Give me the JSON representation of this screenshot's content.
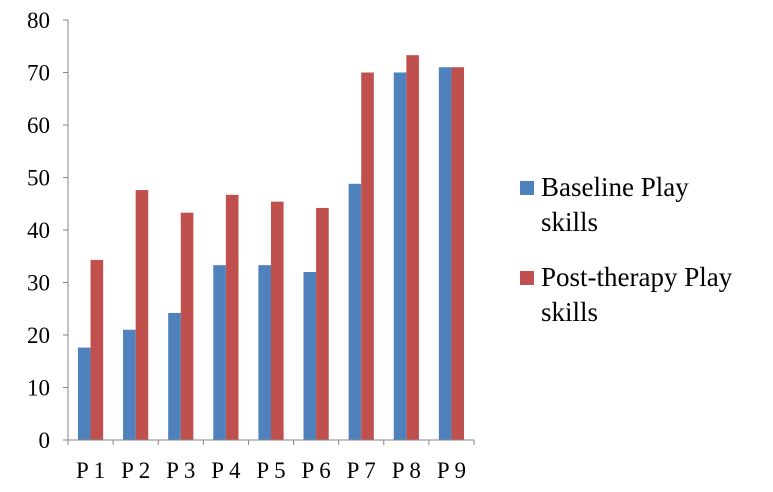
{
  "chart_data": {
    "type": "bar",
    "title": "",
    "xlabel": "",
    "ylabel": "",
    "ylim": [
      0,
      80
    ],
    "yticks": [
      "0",
      "10",
      "20",
      "30",
      "40",
      "50",
      "60",
      "70",
      "80"
    ],
    "grid": false,
    "legend_position": "right",
    "categories": [
      "P 1",
      "P 2",
      "P 3",
      "P 4",
      "P 5",
      "P 6",
      "P 7",
      "P 8",
      "P 9"
    ],
    "series": [
      {
        "name": "Baseline Play skills",
        "name_lines": [
          "Baseline Play",
          "skills"
        ],
        "color": "#4f81bd",
        "values": [
          17.6,
          21,
          24.2,
          33.3,
          33.3,
          32,
          48.8,
          70,
          71
        ]
      },
      {
        "name": "Post-therapy Play skills",
        "name_lines": [
          "Post-therapy Play",
          "skills"
        ],
        "color": "#c0504d",
        "values": [
          34.3,
          47.6,
          43.3,
          46.7,
          45.4,
          44.2,
          70,
          73.3,
          71
        ]
      }
    ]
  }
}
